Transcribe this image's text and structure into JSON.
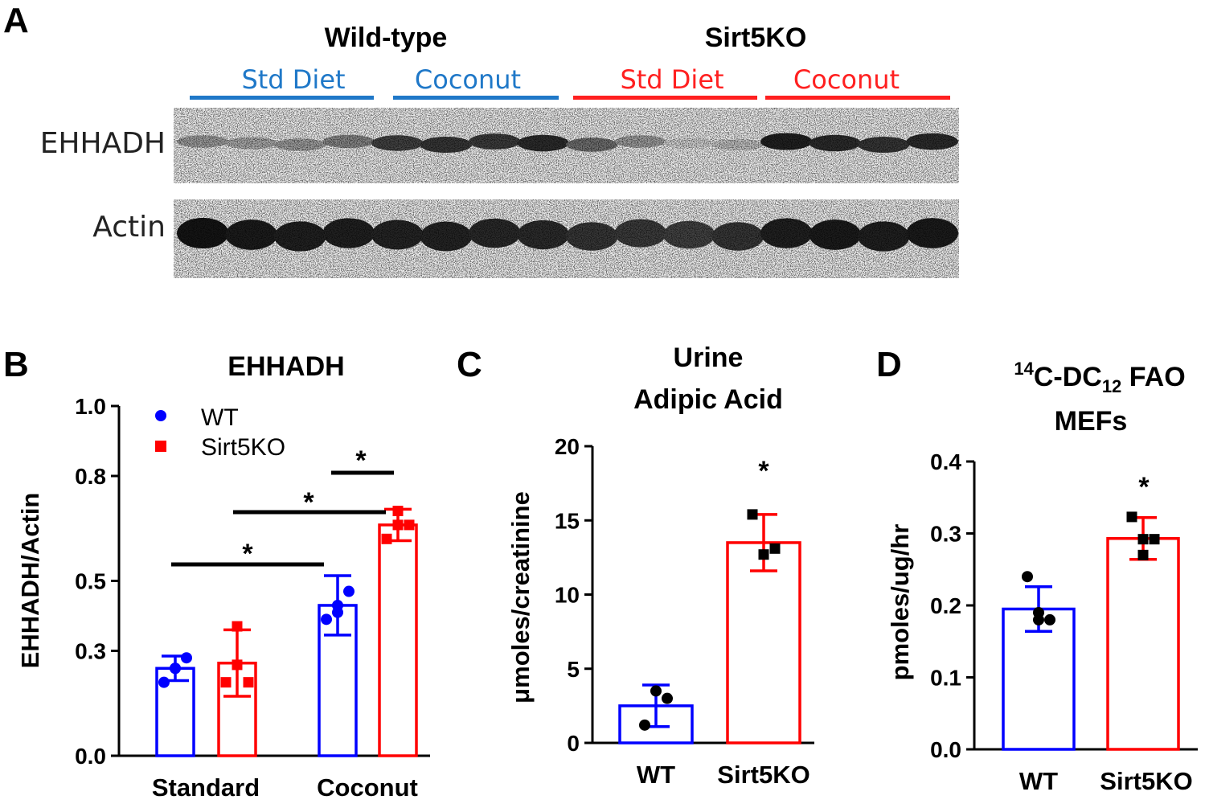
{
  "colors": {
    "wt": "#0000ff",
    "ko": "#ff0000",
    "wt_blot": "#1f78c8",
    "ko_blot": "#ff2020"
  },
  "panel_a": {
    "letter": "A",
    "groups": [
      {
        "heading": "Wild-type",
        "subgroups": [
          {
            "label": "Std Diet",
            "color": "#1f78c8"
          },
          {
            "label": "Coconut",
            "color": "#1f78c8"
          }
        ]
      },
      {
        "heading": "Sirt5KO",
        "subgroups": [
          {
            "label": "Std Diet",
            "color": "#ff2020"
          },
          {
            "label": "Coconut",
            "color": "#ff2020"
          }
        ]
      }
    ],
    "blots": [
      {
        "label": "EHHADH",
        "intensities": [
          0.35,
          0.3,
          0.35,
          0.45,
          0.75,
          0.8,
          0.78,
          0.85,
          0.55,
          0.35,
          0.12,
          0.2,
          0.9,
          0.85,
          0.8,
          0.85
        ]
      },
      {
        "label": "Actin",
        "intensities": [
          0.95,
          0.92,
          0.9,
          0.9,
          0.88,
          0.88,
          0.86,
          0.85,
          0.8,
          0.78,
          0.75,
          0.8,
          0.9,
          0.92,
          0.9,
          0.92
        ]
      }
    ]
  },
  "chart_data": [
    {
      "panel": "B",
      "type": "bar",
      "title": "EHHADH",
      "ylabel": "EHHADH/Actin",
      "categories": [
        "Standard",
        "Coconut"
      ],
      "ylim": [
        0,
        1.0
      ],
      "yticks": [
        0.0,
        0.3,
        0.5,
        0.8,
        1.0
      ],
      "ytick_labels": [
        "0.0",
        "0.3",
        "0.5",
        "0.8",
        "1.0"
      ],
      "legend": {
        "position": "top-left",
        "entries": [
          "WT",
          "Sirt5KO"
        ]
      },
      "series": [
        {
          "name": "WT",
          "color": "#0000ff",
          "marker": "circle",
          "values": [
            0.25,
            0.43
          ],
          "errors": [
            0.035,
            0.085
          ],
          "points": [
            [
              0.21,
              0.25,
              0.28,
              0.25
            ],
            [
              0.39,
              0.41,
              0.47,
              0.43
            ]
          ]
        },
        {
          "name": "Sirt5KO",
          "color": "#ff0000",
          "marker": "square",
          "values": [
            0.265,
            0.66
          ],
          "errors": [
            0.095,
            0.045
          ],
          "points": [
            [
              0.21,
              0.26,
              0.21,
              0.37
            ],
            [
              0.62,
              0.66,
              0.66,
              0.7
            ]
          ]
        }
      ],
      "significance": [
        "*",
        "*",
        "*"
      ]
    },
    {
      "panel": "C",
      "type": "bar",
      "title": [
        "Urine",
        "Adipic Acid"
      ],
      "ylabel": "μmoles/creatinine",
      "categories": [
        "WT",
        "Sirt5KO"
      ],
      "ylim": [
        0,
        20
      ],
      "yticks": [
        0,
        5,
        10,
        15,
        20
      ],
      "ytick_labels": [
        "0",
        "5",
        "10",
        "15",
        "20"
      ],
      "series": [
        {
          "name": "",
          "colors": [
            "#0000ff",
            "#ff0000"
          ],
          "values": [
            2.5,
            13.5
          ],
          "errors": [
            1.4,
            1.9
          ],
          "points": [
            [
              1.2,
              3.5,
              3.0
            ],
            [
              15.4,
              12.7,
              13.1
            ]
          ]
        }
      ],
      "significance": [
        "*"
      ]
    },
    {
      "panel": "D",
      "type": "bar",
      "title": {
        "sup": "14",
        "main": "C-DC",
        "sub": "12",
        "rest": " FAO",
        "line2": "MEFs"
      },
      "ylabel": "pmoles/ug/hr",
      "categories": [
        "WT",
        "Sirt5KO"
      ],
      "ylim": [
        0,
        0.4
      ],
      "yticks": [
        0.0,
        0.1,
        0.2,
        0.3,
        0.4
      ],
      "ytick_labels": [
        "0.0",
        "0.1",
        "0.2",
        "0.3",
        "0.4"
      ],
      "series": [
        {
          "name": "",
          "colors": [
            "#0000ff",
            "#ff0000"
          ],
          "values": [
            0.195,
            0.293
          ],
          "errors": [
            0.031,
            0.029
          ],
          "points": [
            [
              0.24,
              0.19,
              0.18,
              0.18
            ],
            [
              0.323,
              0.292,
              0.292,
              0.27
            ]
          ]
        }
      ],
      "significance": [
        "*"
      ]
    }
  ]
}
